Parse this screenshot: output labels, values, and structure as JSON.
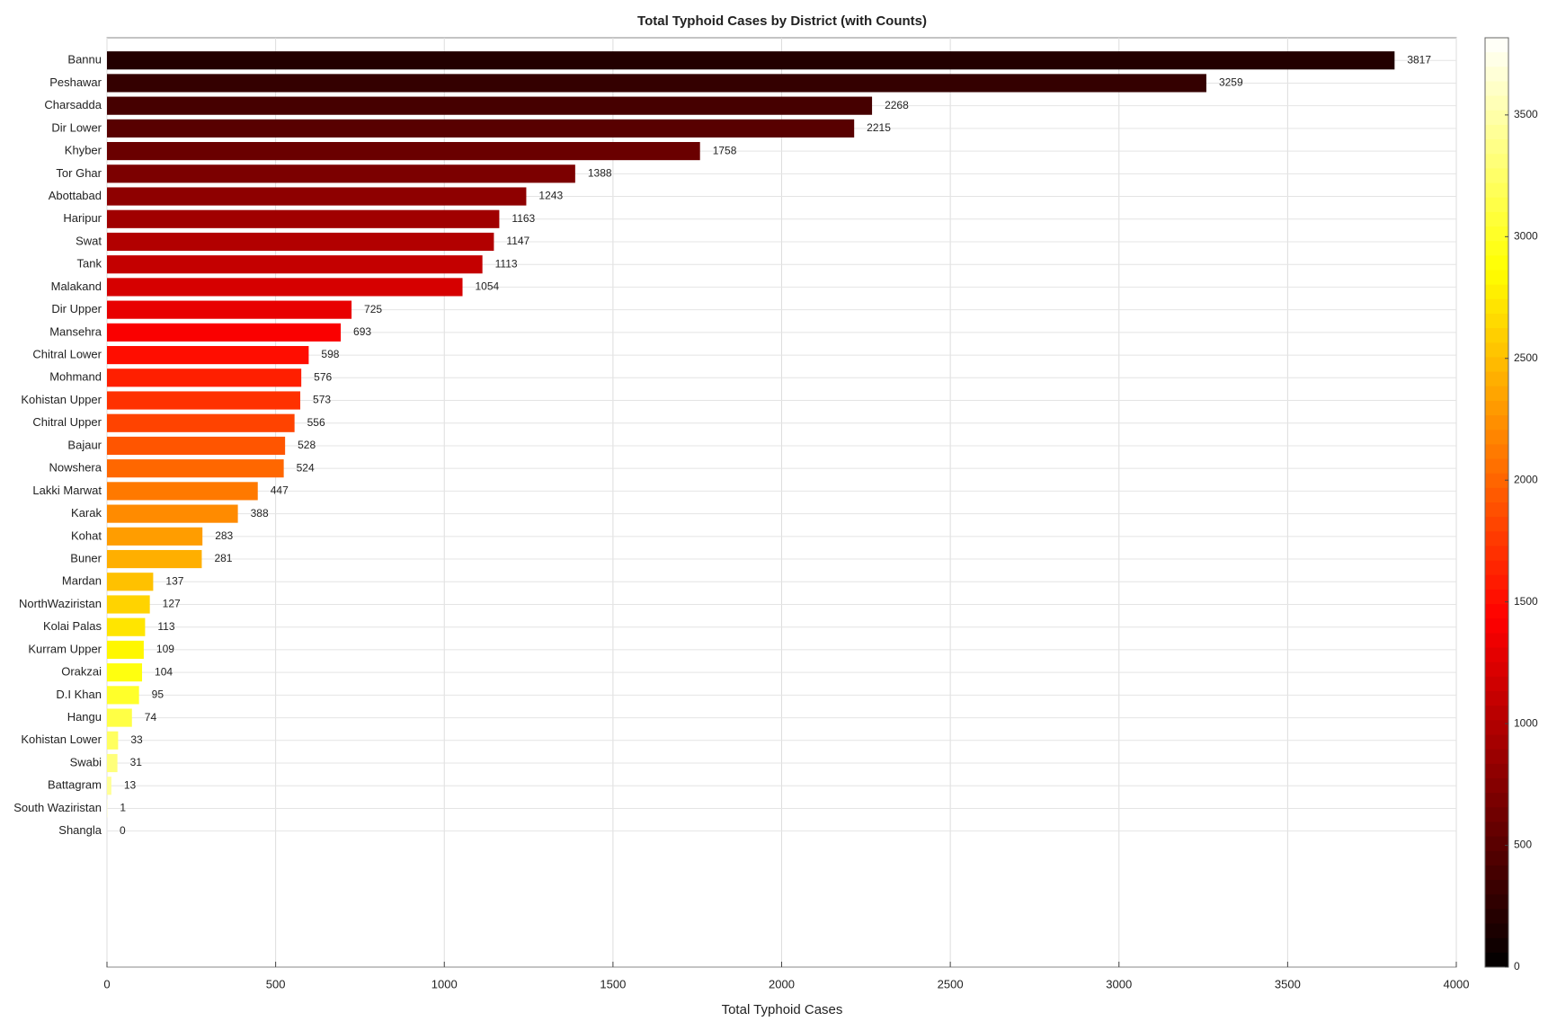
{
  "chart_data": {
    "type": "barh",
    "title": "Total Typhoid Cases by District (with Counts)",
    "x_label": "Total Typhoid Cases",
    "categories": [
      "Bannu",
      "Peshawar",
      "Charsadda",
      "Dir Lower",
      "Khyber",
      "Tor Ghar",
      "Abottabad",
      "Haripur",
      "Swat",
      "Tank",
      "Malakand",
      "Dir Upper",
      "Mansehra",
      "Chitral Lower",
      "Mohmand",
      "Kohistan Upper",
      "Chitral Upper",
      "Bajaur",
      "Nowshera",
      "Lakki Marwat",
      "Karak",
      "Kohat",
      "Buner",
      "Mardan",
      "NorthWaziristan",
      "Kolai Palas",
      "Kurram Upper",
      "Orakzai",
      "D.I Khan",
      "Hangu",
      "Kohistan Lower",
      "Swabi",
      "Battagram",
      "South Waziristan",
      "Shangla"
    ],
    "values": [
      3817,
      3259,
      2268,
      2215,
      1758,
      1388,
      1243,
      1163,
      1147,
      1113,
      1054,
      725,
      693,
      598,
      576,
      573,
      556,
      528,
      524,
      447,
      388,
      283,
      281,
      137,
      127,
      113,
      109,
      104,
      95,
      74,
      33,
      31,
      13,
      1,
      0
    ],
    "xlim": [
      0,
      4000
    ],
    "xticks": [
      0,
      500,
      1000,
      1500,
      2000,
      2500,
      3000,
      3500,
      4000
    ],
    "grid": true,
    "colormap": "hot",
    "colorbar": {
      "lim": [
        0,
        3817
      ],
      "ticks": [
        0,
        500,
        1000,
        1500,
        2000,
        2500,
        3000,
        3500
      ]
    }
  }
}
